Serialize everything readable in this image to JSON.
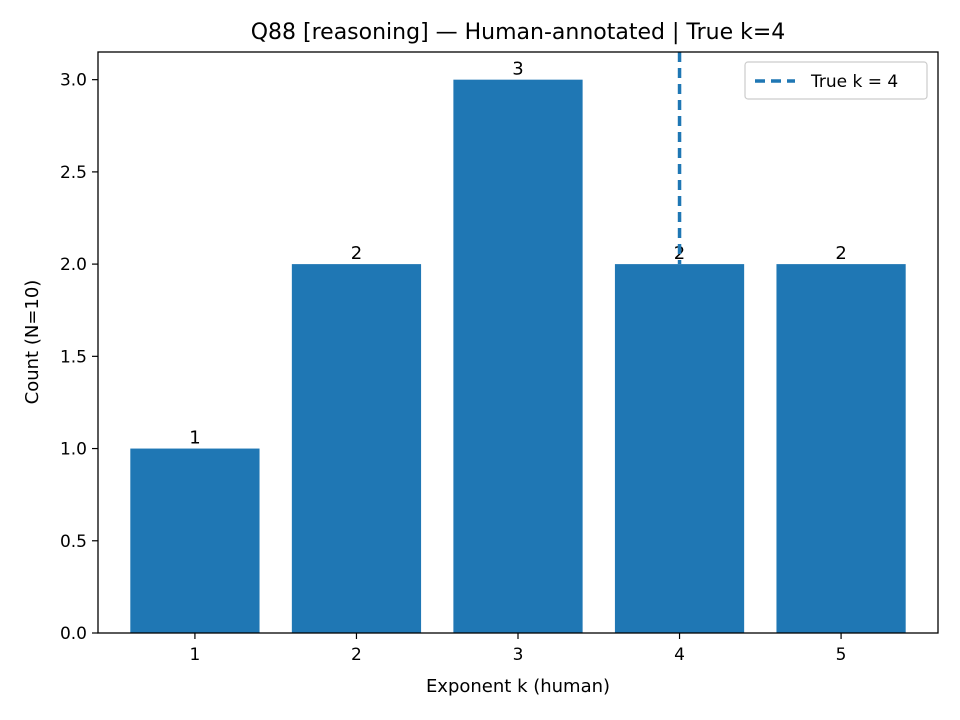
{
  "chart_data": {
    "type": "bar",
    "title": "Q88 [reasoning] — Human-annotated | True k=4",
    "xlabel": "Exponent k (human)",
    "ylabel": "Count (N=10)",
    "categories": [
      "1",
      "2",
      "3",
      "4",
      "5"
    ],
    "x": [
      1,
      2,
      3,
      4,
      5
    ],
    "values": [
      1,
      2,
      3,
      2,
      2
    ],
    "data_labels": [
      "1",
      "2",
      "3",
      "2",
      "2"
    ],
    "xlim": [
      0.4,
      5.6
    ],
    "ylim": [
      0,
      3.15
    ],
    "yticks": [
      0.0,
      0.5,
      1.0,
      1.5,
      2.0,
      2.5,
      3.0
    ],
    "ytick_labels": [
      "0.0",
      "0.5",
      "1.0",
      "1.5",
      "2.0",
      "2.5",
      "3.0"
    ],
    "bar_color": "#1f77b4",
    "reference_line": {
      "x": 4,
      "style": "dashed",
      "color": "#1f77b4",
      "label": "True k = 4"
    },
    "legend": {
      "position": "top-right",
      "entries": [
        "True k = 4"
      ]
    },
    "grid": false
  }
}
